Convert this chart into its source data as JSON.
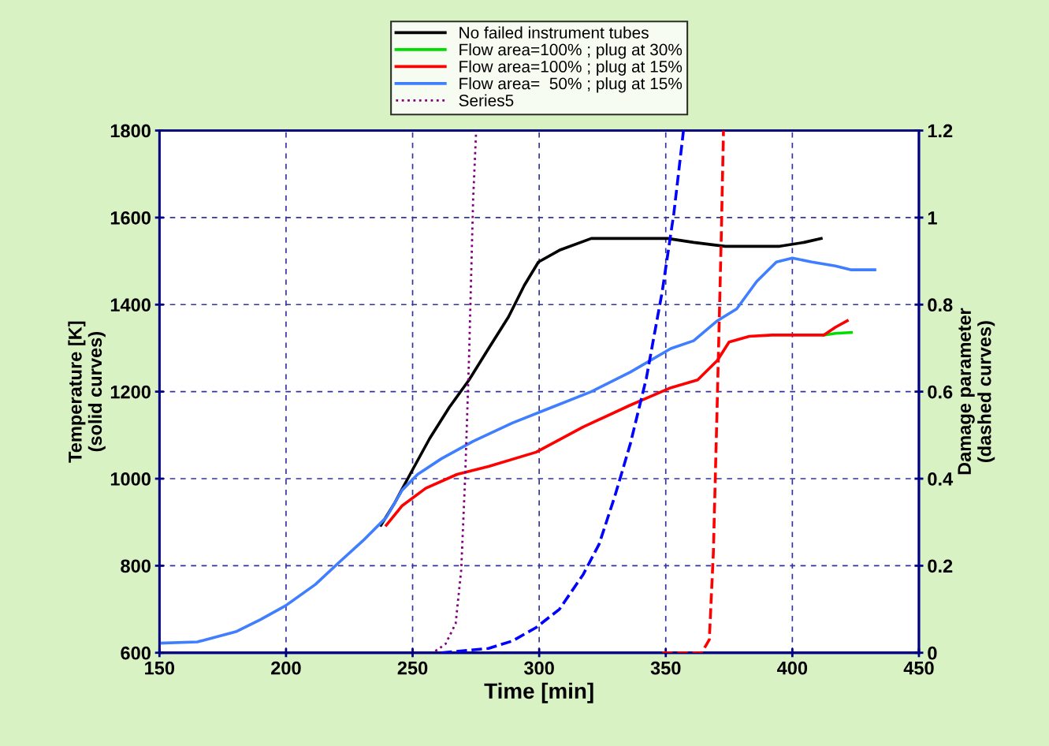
{
  "chart_data": {
    "type": "line",
    "xlabel": "Time [min]",
    "ylabel": "Temperature [K]\n(solid curves)",
    "y2label": "Damage parameter\n(dashed curves)",
    "xlim": [
      150,
      450
    ],
    "xticks": [
      150,
      200,
      250,
      300,
      350,
      400,
      450
    ],
    "ylim": [
      600,
      1800
    ],
    "yticks": [
      600,
      800,
      1000,
      1200,
      1400,
      1600,
      1800
    ],
    "y2lim": [
      0,
      1.2
    ],
    "y2ticks": [
      0,
      0.2,
      0.4,
      0.6,
      0.8,
      1,
      1.2
    ],
    "grid": true,
    "legend": "top",
    "marker": "none",
    "series": [
      {
        "name": "No failed instrument tubes",
        "color": "#000000",
        "line_style": "solid",
        "x": [
          237.5,
          242.7,
          249,
          256.7,
          264.5,
          272.3,
          280,
          287.9,
          294.1,
          299.7,
          308,
          320.6,
          336,
          350.7,
          361,
          373.5,
          395,
          404.6,
          411.4
        ],
        "values": [
          893,
          942,
          1010,
          1092,
          1164,
          1227,
          1299,
          1372,
          1444,
          1498,
          1525,
          1552,
          1552,
          1552,
          1543,
          1534,
          1534,
          1543,
          1552
        ]
      },
      {
        "name": "Flow area=100% ; plug at 30%",
        "color": "#00dd00",
        "line_style": "solid",
        "x": [
          412.4,
          417,
          423.3
        ],
        "values": [
          1330,
          1334,
          1336
        ]
      },
      {
        "name": "Flow area=100% ; plug at 15%",
        "color": "#ff0000",
        "line_style": "solid",
        "x": [
          239.6,
          245.9,
          255.2,
          267.6,
          280,
          298.8,
          317.4,
          336,
          352,
          362.6,
          370.4,
          375,
          383,
          392,
          412.4,
          417,
          421.7
        ],
        "values": [
          893,
          938,
          978,
          1010,
          1028,
          1061,
          1119,
          1169,
          1209,
          1227,
          1272,
          1314,
          1327,
          1330,
          1330,
          1348,
          1363
        ]
      },
      {
        "name": "Flow area=  50% ; plug at 15%",
        "color": "#3f7fff",
        "line_style": "solid",
        "x": [
          150,
          165,
          180.5,
          189.8,
          199.8,
          211.6,
          221,
          230.3,
          239.6,
          245.9,
          252,
          261.4,
          273.9,
          289.4,
          305,
          320.6,
          336,
          352,
          361,
          370.4,
          378,
          385.9,
          393.7,
          400,
          407.7,
          417,
          423.3,
          432.6
        ],
        "values": [
          622,
          625,
          649,
          676,
          708,
          757,
          808,
          857,
          911,
          974,
          1010,
          1046,
          1086,
          1128,
          1164,
          1200,
          1245,
          1299,
          1317,
          1363,
          1390,
          1453,
          1498,
          1507,
          1498,
          1489,
          1480,
          1480
        ]
      },
      {
        "name": "Series5",
        "color": "#800080",
        "line_style": "dotted",
        "axis": "y2",
        "x": [
          259,
          263,
          267,
          269.2,
          270.8,
          272.3,
          273.9,
          275.1
        ],
        "values": [
          0.004,
          0.02,
          0.067,
          0.19,
          0.41,
          0.68,
          1.04,
          1.2
        ]
      },
      {
        "color": "#0000ff",
        "line_style": "dashed",
        "axis": "y2",
        "x": [
          261.4,
          280,
          289.4,
          298.8,
          308,
          317.4,
          323.7,
          329.9,
          336,
          342.3,
          348.6,
          353.2,
          357
        ],
        "values": [
          0,
          0.01,
          0.027,
          0.058,
          0.1,
          0.18,
          0.25,
          0.36,
          0.48,
          0.63,
          0.83,
          1.01,
          1.2
        ]
      },
      {
        "color": "#ff0000",
        "line_style": "dashed",
        "axis": "y2",
        "x": [
          348.6,
          364.2,
          367.2,
          368.8,
          370.4,
          371.9,
          372.8
        ],
        "values": [
          0,
          0,
          0.03,
          0.23,
          0.59,
          0.95,
          1.2
        ]
      }
    ]
  }
}
